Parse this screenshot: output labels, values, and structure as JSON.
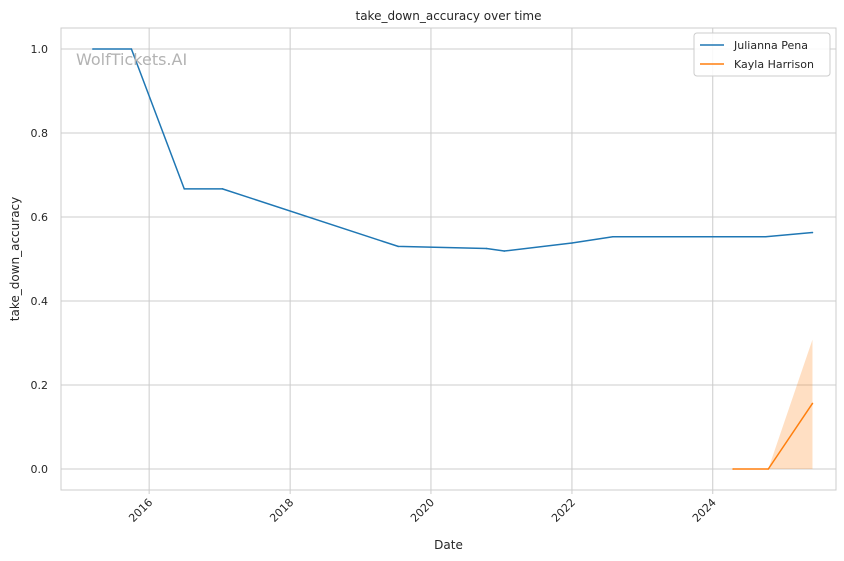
{
  "chart_data": {
    "type": "line",
    "title": "take_down_accuracy over time",
    "xlabel": "Date",
    "ylabel": "take_down_accuracy",
    "x_axis_type": "date",
    "xlim": [
      "2014-10-01",
      "2025-10-01"
    ],
    "ylim": [
      -0.05,
      1.05
    ],
    "x_ticks": [
      "2016",
      "2018",
      "2020",
      "2022",
      "2024"
    ],
    "y_ticks": [
      "0.0",
      "0.2",
      "0.4",
      "0.6",
      "0.8",
      "1.0"
    ],
    "grid": true,
    "legend_position": "top-right",
    "watermark": "WolfTickets.AI",
    "series": [
      {
        "name": "Julianna Pena",
        "color": "#1f77b4",
        "points": [
          {
            "x": "2015-03-15",
            "y": 1.0
          },
          {
            "x": "2015-10-01",
            "y": 1.0
          },
          {
            "x": "2016-07-01",
            "y": 0.667
          },
          {
            "x": "2017-01-15",
            "y": 0.667
          },
          {
            "x": "2019-07-15",
            "y": 0.53
          },
          {
            "x": "2020-10-15",
            "y": 0.525
          },
          {
            "x": "2021-01-15",
            "y": 0.519
          },
          {
            "x": "2022-01-01",
            "y": 0.538
          },
          {
            "x": "2022-08-01",
            "y": 0.553
          },
          {
            "x": "2024-10-01",
            "y": 0.553
          },
          {
            "x": "2025-06-01",
            "y": 0.563
          }
        ]
      },
      {
        "name": "Kayla Harrison",
        "color": "#ff7f0e",
        "points": [
          {
            "x": "2024-04-15",
            "y": 0.0
          },
          {
            "x": "2024-10-15",
            "y": 0.0
          },
          {
            "x": "2025-06-01",
            "y": 0.156
          }
        ],
        "band": [
          {
            "x": "2024-10-15",
            "low": 0.0,
            "high": 0.0
          },
          {
            "x": "2025-06-01",
            "low": 0.0,
            "high": 0.308
          }
        ]
      }
    ]
  }
}
